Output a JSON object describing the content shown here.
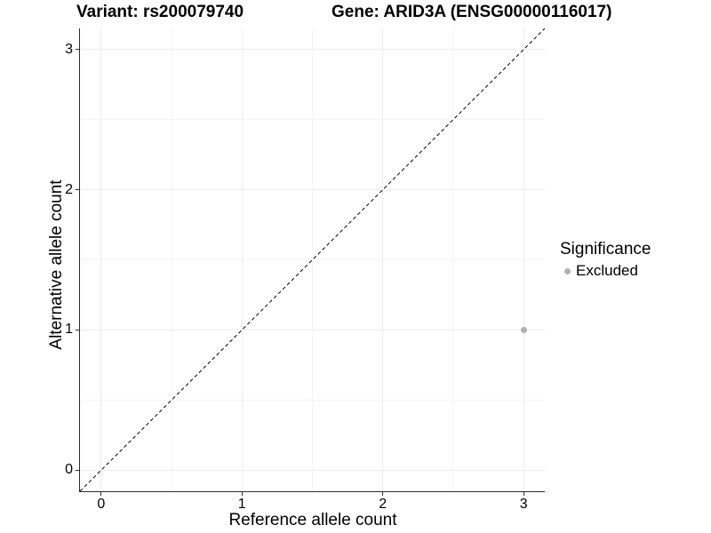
{
  "title": {
    "variant": "Variant: rs200079740",
    "gene": "Gene: ARID3A (ENSG00000116017)"
  },
  "axes": {
    "x": {
      "label": "Reference allele count",
      "tick_labels": [
        "0",
        "1",
        "2",
        "3"
      ]
    },
    "y": {
      "label": "Alternative allele count",
      "tick_labels": [
        "0",
        "1",
        "2",
        "3"
      ]
    }
  },
  "legend": {
    "title": "Significance",
    "items": [
      {
        "label": "Excluded",
        "marker": "dot-icon",
        "color": "#b0b0b0"
      }
    ]
  },
  "colors": {
    "background": "#ffffff",
    "axis_line": "#2b2b2b",
    "grid_major": "#ececec",
    "grid_minor": "#f5f5f5",
    "point": "#b0b0b0",
    "reference_line": "#000000",
    "text": "#000000"
  },
  "chart_data": {
    "type": "scatter",
    "title": "Variant: rs200079740 | Gene: ARID3A (ENSG00000116017)",
    "xlabel": "Reference allele count",
    "ylabel": "Alternative allele count",
    "xlim": [
      -0.15,
      3.15
    ],
    "ylim": [
      -0.15,
      3.15
    ],
    "x_ticks": [
      0,
      1,
      2,
      3
    ],
    "y_ticks": [
      0,
      1,
      2,
      3
    ],
    "grid": "major and minor gridlines, light gray on white",
    "legend_position": "right-center",
    "series": [
      {
        "name": "Excluded",
        "color": "#b0b0b0",
        "marker_size": 7,
        "points": [
          {
            "x": 3,
            "y": 1
          }
        ]
      }
    ],
    "reference_line": {
      "slope": 1,
      "intercept": 0,
      "style": "dashed",
      "color": "#000000"
    }
  }
}
